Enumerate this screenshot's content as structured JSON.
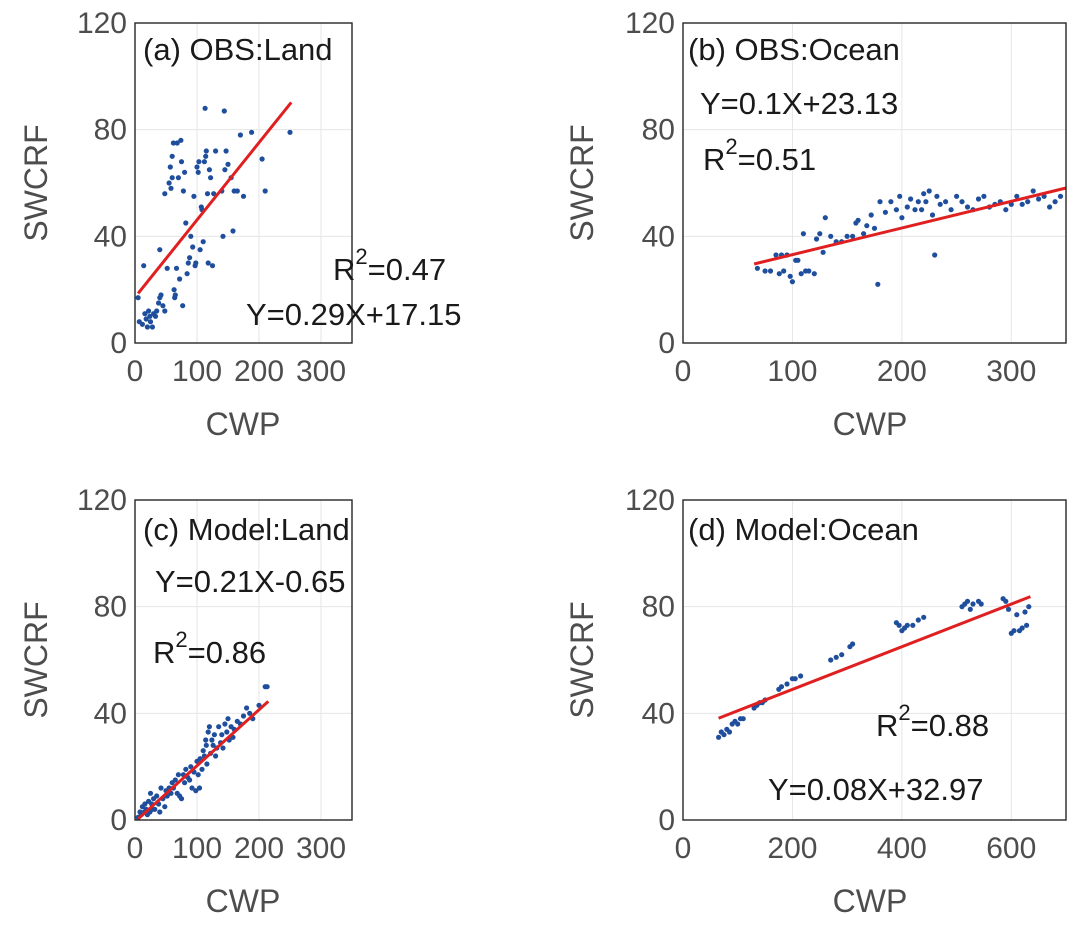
{
  "colors": {
    "points": "#1f4e9c",
    "fit": "#e02020",
    "axis": "#262626",
    "grid": "#e6e6e6"
  },
  "chart_data": [
    {
      "type": "scatter",
      "title": "(a) OBS:Land",
      "xlabel": "CWP",
      "ylabel": "SWCRF",
      "xlim": [
        0,
        350
      ],
      "ylim": [
        0,
        120
      ],
      "xticks": [
        0,
        100,
        200,
        300
      ],
      "yticks": [
        0,
        40,
        80,
        120
      ],
      "grid": true,
      "equation": "Y=0.29X+17.15",
      "r2_prefix": "R",
      "r2_sup": "2",
      "r2_value": "=0.47",
      "fit": {
        "slope": 0.29,
        "intercept": 17.15,
        "x_range": [
          5,
          252
        ]
      },
      "points": [
        [
          5,
          17
        ],
        [
          7,
          8
        ],
        [
          12,
          7
        ],
        [
          14,
          29
        ],
        [
          16,
          11
        ],
        [
          18,
          9
        ],
        [
          20,
          6
        ],
        [
          22,
          12
        ],
        [
          24,
          10
        ],
        [
          25,
          8
        ],
        [
          28,
          6
        ],
        [
          30,
          11
        ],
        [
          33,
          10
        ],
        [
          35,
          12
        ],
        [
          38,
          15
        ],
        [
          40,
          17
        ],
        [
          40,
          35
        ],
        [
          42,
          18
        ],
        [
          45,
          14
        ],
        [
          48,
          12
        ],
        [
          48,
          56
        ],
        [
          52,
          28
        ],
        [
          55,
          60
        ],
        [
          57,
          66
        ],
        [
          58,
          58
        ],
        [
          60,
          62
        ],
        [
          60,
          70
        ],
        [
          62,
          75
        ],
        [
          63,
          20
        ],
        [
          64,
          17
        ],
        [
          65,
          18
        ],
        [
          67,
          28
        ],
        [
          68,
          75
        ],
        [
          70,
          62
        ],
        [
          72,
          24
        ],
        [
          74,
          76
        ],
        [
          75,
          68
        ],
        [
          77,
          14
        ],
        [
          78,
          57
        ],
        [
          80,
          64
        ],
        [
          82,
          45
        ],
        [
          84,
          26
        ],
        [
          86,
          30
        ],
        [
          88,
          32
        ],
        [
          90,
          40
        ],
        [
          93,
          36
        ],
        [
          95,
          55
        ],
        [
          97,
          29
        ],
        [
          98,
          30
        ],
        [
          100,
          66
        ],
        [
          102,
          64
        ],
        [
          103,
          68
        ],
        [
          105,
          35
        ],
        [
          107,
          51
        ],
        [
          108,
          50
        ],
        [
          110,
          38
        ],
        [
          112,
          68
        ],
        [
          113,
          88
        ],
        [
          114,
          70
        ],
        [
          115,
          72
        ],
        [
          117,
          56
        ],
        [
          118,
          30
        ],
        [
          120,
          65
        ],
        [
          122,
          62
        ],
        [
          125,
          29
        ],
        [
          127,
          56
        ],
        [
          130,
          72
        ],
        [
          140,
          57
        ],
        [
          142,
          40
        ],
        [
          144,
          87
        ],
        [
          145,
          65
        ],
        [
          147,
          72
        ],
        [
          150,
          67
        ],
        [
          155,
          62
        ],
        [
          158,
          42
        ],
        [
          160,
          57
        ],
        [
          165,
          57
        ],
        [
          170,
          78
        ],
        [
          175,
          55
        ],
        [
          188,
          79
        ],
        [
          205,
          69
        ],
        [
          210,
          57
        ],
        [
          250,
          79
        ]
      ]
    },
    {
      "type": "scatter",
      "title": "(b) OBS:Ocean",
      "xlabel": "CWP",
      "ylabel": "SWCRF",
      "xlim": [
        0,
        350
      ],
      "ylim": [
        0,
        120
      ],
      "xticks": [
        0,
        100,
        200,
        300
      ],
      "yticks": [
        0,
        40,
        80,
        120
      ],
      "grid": true,
      "equation": "Y=0.1X+23.13",
      "r2_prefix": "R",
      "r2_sup": "2",
      "r2_value": "=0.51",
      "fit": {
        "slope": 0.1,
        "intercept": 23.13,
        "x_range": [
          65,
          350
        ]
      },
      "points": [
        [
          68,
          28
        ],
        [
          75,
          27
        ],
        [
          80,
          27
        ],
        [
          85,
          33
        ],
        [
          88,
          26
        ],
        [
          90,
          33
        ],
        [
          92,
          27
        ],
        [
          95,
          33
        ],
        [
          98,
          25
        ],
        [
          100,
          23
        ],
        [
          103,
          31
        ],
        [
          105,
          31
        ],
        [
          108,
          26
        ],
        [
          110,
          41
        ],
        [
          112,
          27
        ],
        [
          115,
          27
        ],
        [
          120,
          26
        ],
        [
          122,
          39
        ],
        [
          125,
          41
        ],
        [
          128,
          34
        ],
        [
          130,
          47
        ],
        [
          135,
          40
        ],
        [
          140,
          38
        ],
        [
          145,
          38
        ],
        [
          150,
          40
        ],
        [
          155,
          40
        ],
        [
          158,
          45
        ],
        [
          160,
          46
        ],
        [
          165,
          41
        ],
        [
          168,
          44
        ],
        [
          172,
          48
        ],
        [
          175,
          43
        ],
        [
          178,
          22
        ],
        [
          180,
          53
        ],
        [
          185,
          49
        ],
        [
          190,
          53
        ],
        [
          195,
          50
        ],
        [
          198,
          55
        ],
        [
          200,
          47
        ],
        [
          205,
          51
        ],
        [
          208,
          54
        ],
        [
          212,
          50
        ],
        [
          215,
          53
        ],
        [
          218,
          50
        ],
        [
          220,
          56
        ],
        [
          222,
          53
        ],
        [
          225,
          57
        ],
        [
          228,
          48
        ],
        [
          230,
          33
        ],
        [
          232,
          55
        ],
        [
          235,
          52
        ],
        [
          240,
          53
        ],
        [
          245,
          50
        ],
        [
          250,
          55
        ],
        [
          255,
          53
        ],
        [
          260,
          51
        ],
        [
          265,
          50
        ],
        [
          270,
          54
        ],
        [
          275,
          55
        ],
        [
          280,
          51
        ],
        [
          285,
          52
        ],
        [
          290,
          53
        ],
        [
          295,
          50
        ],
        [
          300,
          52
        ],
        [
          305,
          55
        ],
        [
          310,
          52
        ],
        [
          315,
          53
        ],
        [
          320,
          57
        ],
        [
          325,
          54
        ],
        [
          330,
          55
        ],
        [
          335,
          51
        ],
        [
          340,
          53
        ],
        [
          345,
          55
        ]
      ]
    },
    {
      "type": "scatter",
      "title": "(c) Model:Land",
      "xlabel": "CWP",
      "ylabel": "SWCRF",
      "xlim": [
        0,
        350
      ],
      "ylim": [
        0,
        120
      ],
      "xticks": [
        0,
        100,
        200,
        300
      ],
      "yticks": [
        0,
        40,
        80,
        120
      ],
      "grid": true,
      "equation": "Y=0.21X-0.65",
      "r2_prefix": "R",
      "r2_sup": "2",
      "r2_value": "=0.86",
      "fit": {
        "slope": 0.21,
        "intercept": -0.65,
        "x_range": [
          5,
          215
        ]
      },
      "points": [
        [
          5,
          1
        ],
        [
          8,
          3
        ],
        [
          10,
          2
        ],
        [
          12,
          5
        ],
        [
          15,
          3
        ],
        [
          16,
          6
        ],
        [
          18,
          4
        ],
        [
          20,
          2
        ],
        [
          22,
          7
        ],
        [
          24,
          3
        ],
        [
          25,
          10
        ],
        [
          27,
          6
        ],
        [
          28,
          4
        ],
        [
          30,
          8
        ],
        [
          32,
          4
        ],
        [
          35,
          9
        ],
        [
          38,
          6
        ],
        [
          40,
          3
        ],
        [
          42,
          12
        ],
        [
          45,
          8
        ],
        [
          48,
          5
        ],
        [
          50,
          11
        ],
        [
          52,
          9
        ],
        [
          55,
          12
        ],
        [
          58,
          10
        ],
        [
          60,
          14
        ],
        [
          62,
          12
        ],
        [
          65,
          15
        ],
        [
          68,
          10
        ],
        [
          70,
          17
        ],
        [
          72,
          9
        ],
        [
          75,
          8
        ],
        [
          78,
          17
        ],
        [
          80,
          14
        ],
        [
          82,
          19
        ],
        [
          85,
          16
        ],
        [
          88,
          15
        ],
        [
          90,
          20
        ],
        [
          92,
          12
        ],
        [
          95,
          18
        ],
        [
          98,
          11
        ],
        [
          100,
          22
        ],
        [
          102,
          17
        ],
        [
          104,
          12
        ],
        [
          105,
          23
        ],
        [
          108,
          19
        ],
        [
          110,
          26
        ],
        [
          112,
          24
        ],
        [
          114,
          30
        ],
        [
          115,
          28
        ],
        [
          116,
          21
        ],
        [
          118,
          33
        ],
        [
          120,
          35
        ],
        [
          122,
          25
        ],
        [
          124,
          30
        ],
        [
          126,
          28
        ],
        [
          128,
          32
        ],
        [
          130,
          24
        ],
        [
          132,
          27
        ],
        [
          135,
          35
        ],
        [
          138,
          29
        ],
        [
          140,
          32
        ],
        [
          142,
          27
        ],
        [
          145,
          36
        ],
        [
          148,
          33
        ],
        [
          150,
          38
        ],
        [
          152,
          30
        ],
        [
          155,
          35
        ],
        [
          158,
          31
        ],
        [
          160,
          34
        ],
        [
          165,
          37
        ],
        [
          170,
          36
        ],
        [
          175,
          39
        ],
        [
          180,
          42
        ],
        [
          185,
          40
        ],
        [
          190,
          38
        ],
        [
          200,
          43
        ],
        [
          210,
          50
        ],
        [
          213,
          50
        ]
      ]
    },
    {
      "type": "scatter",
      "title": "(d) Model:Ocean",
      "xlabel": "CWP",
      "ylabel": "SWCRF",
      "xlim": [
        0,
        700
      ],
      "ylim": [
        0,
        120
      ],
      "xticks": [
        0,
        200,
        400,
        600
      ],
      "yticks": [
        0,
        40,
        80,
        120
      ],
      "grid": true,
      "equation": "Y=0.08X+32.97",
      "r2_prefix": "R",
      "r2_sup": "2",
      "r2_value": "=0.88",
      "fit": {
        "slope": 0.08,
        "intercept": 32.97,
        "x_range": [
          65,
          635
        ]
      },
      "points": [
        [
          65,
          31
        ],
        [
          70,
          33
        ],
        [
          75,
          32
        ],
        [
          80,
          34
        ],
        [
          85,
          33
        ],
        [
          90,
          36
        ],
        [
          95,
          37
        ],
        [
          100,
          36
        ],
        [
          105,
          38
        ],
        [
          110,
          38
        ],
        [
          130,
          42
        ],
        [
          135,
          43
        ],
        [
          140,
          44
        ],
        [
          145,
          44
        ],
        [
          150,
          45
        ],
        [
          175,
          49
        ],
        [
          180,
          50
        ],
        [
          190,
          51
        ],
        [
          200,
          53
        ],
        [
          205,
          53
        ],
        [
          215,
          54
        ],
        [
          270,
          60
        ],
        [
          280,
          61
        ],
        [
          290,
          62
        ],
        [
          305,
          65
        ],
        [
          310,
          66
        ],
        [
          390,
          74
        ],
        [
          395,
          73
        ],
        [
          400,
          71
        ],
        [
          405,
          72
        ],
        [
          410,
          73
        ],
        [
          420,
          73
        ],
        [
          430,
          75
        ],
        [
          440,
          76
        ],
        [
          510,
          80
        ],
        [
          515,
          81
        ],
        [
          520,
          82
        ],
        [
          525,
          79
        ],
        [
          530,
          81
        ],
        [
          540,
          82
        ],
        [
          545,
          81
        ],
        [
          585,
          83
        ],
        [
          590,
          82
        ],
        [
          595,
          79
        ],
        [
          600,
          70
        ],
        [
          605,
          71
        ],
        [
          610,
          77
        ],
        [
          615,
          71
        ],
        [
          620,
          72
        ],
        [
          625,
          78
        ],
        [
          628,
          73
        ],
        [
          632,
          80
        ]
      ]
    }
  ]
}
